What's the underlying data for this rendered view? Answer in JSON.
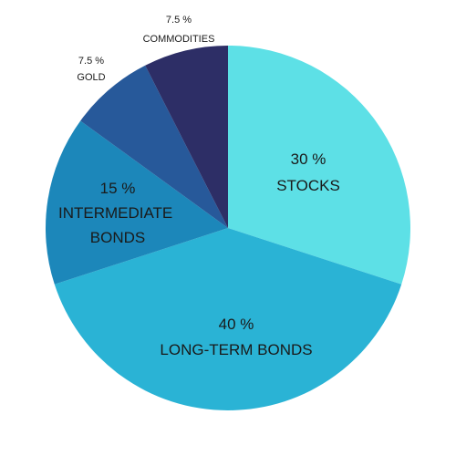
{
  "chart_data": {
    "type": "pie",
    "title": "",
    "slices": [
      {
        "label": "STOCKS",
        "value": 30,
        "value_text": "30 %",
        "color": "#5DE0E6"
      },
      {
        "label": "LONG-TERM BONDS",
        "value": 40,
        "value_text": "40 %",
        "color": "#2AB3D5"
      },
      {
        "label": "INTERMEDIATE BONDS",
        "value": 15,
        "value_text": "15 %",
        "color": "#1C87BA"
      },
      {
        "label": "GOLD",
        "value": 7.5,
        "value_text": "7.5 %",
        "color": "#27599A"
      },
      {
        "label": "COMMODITIES",
        "value": 7.5,
        "value_text": "7.5 %",
        "color": "#2D2E66"
      }
    ]
  }
}
